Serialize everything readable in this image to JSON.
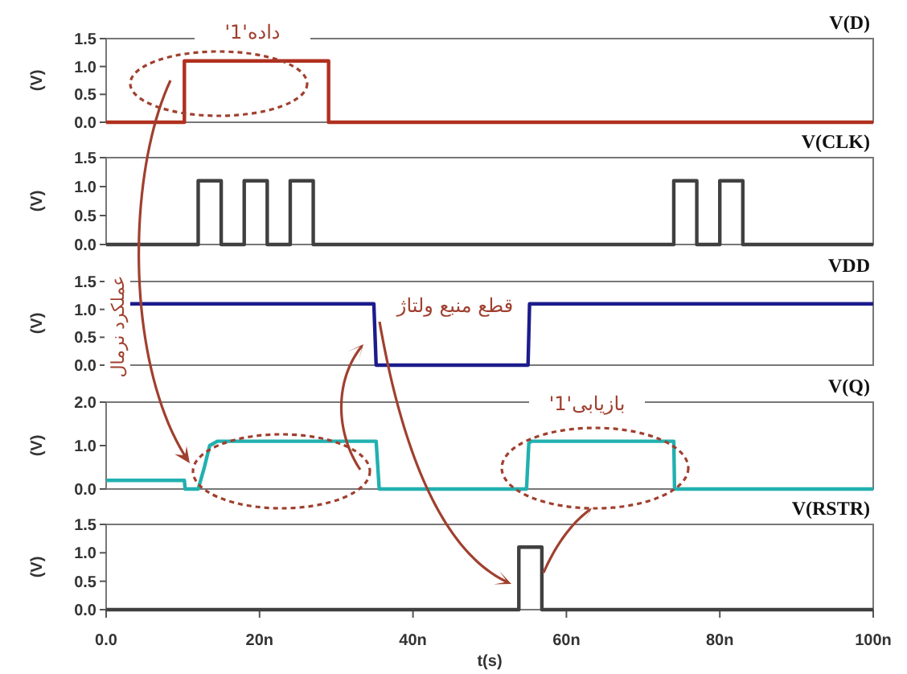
{
  "chart_data": [
    {
      "type": "line",
      "title": "V(D)",
      "ylabel": "(V)",
      "xlim": [
        0,
        100
      ],
      "ylim": [
        0,
        1.5
      ],
      "tick_labels": "y",
      "yticks": [
        {
          "value": 0,
          "label": "0.0"
        },
        {
          "value": 0.5,
          "label": "0.5"
        },
        {
          "value": 1,
          "label": "1.0"
        },
        {
          "value": 1.5,
          "label": "1.5"
        }
      ],
      "x": [
        0,
        10.2,
        10.2,
        29,
        29,
        100
      ],
      "series": [
        {
          "color": "#b0301e",
          "values": [
            0,
            0,
            1.1,
            1.1,
            0,
            0
          ]
        }
      ],
      "annotations": [
        "داده'1'"
      ]
    },
    {
      "type": "line",
      "title": "V(CLK)",
      "ylabel": "(V)",
      "xlim": [
        0,
        100
      ],
      "ylim": [
        0,
        1.5
      ],
      "tick_labels": "y",
      "yticks": [
        {
          "value": 0,
          "label": "0.0"
        },
        {
          "value": 0.5,
          "label": "0.5"
        },
        {
          "value": 1,
          "label": "1.0"
        },
        {
          "value": 1.5,
          "label": "1.5"
        }
      ],
      "x": [
        0,
        12,
        12,
        15,
        15,
        18,
        18,
        21,
        21,
        24,
        24,
        27,
        27,
        74,
        74,
        77,
        77,
        80,
        80,
        83,
        83,
        100
      ],
      "series": [
        {
          "color": "#404040",
          "values": [
            0,
            0,
            1.1,
            1.1,
            0,
            0,
            1.1,
            1.1,
            0,
            0,
            1.1,
            1.1,
            0,
            0,
            1.1,
            1.1,
            0,
            0,
            1.1,
            1.1,
            0,
            0
          ]
        }
      ]
    },
    {
      "type": "line",
      "title": "VDD",
      "ylabel": "(V)",
      "xlim": [
        0,
        100
      ],
      "ylim": [
        0,
        1.5
      ],
      "tick_labels": "y",
      "yticks": [
        {
          "value": 0,
          "label": "0.0"
        },
        {
          "value": 0.5,
          "label": "0.5"
        },
        {
          "value": 1,
          "label": "1.0"
        },
        {
          "value": 1.5,
          "label": "1.5"
        }
      ],
      "x": [
        3,
        34.9,
        35.2,
        55,
        55.2,
        100
      ],
      "series": [
        {
          "color": "#1c1c8c",
          "values": [
            1.1,
            1.1,
            0,
            0,
            1.1,
            1.1
          ]
        }
      ],
      "annotations": [
        "عملکرد نرمال",
        "قطع منبع ولتاژ"
      ]
    },
    {
      "type": "line",
      "title": "V(Q)",
      "ylabel": "(V)",
      "xlim": [
        0,
        100
      ],
      "ylim": [
        0,
        2
      ],
      "tick_labels": "y",
      "yticks": [
        {
          "value": 0,
          "label": "0.0"
        },
        {
          "value": 1,
          "label": "1.0"
        },
        {
          "value": 2,
          "label": "2.0"
        }
      ],
      "x": [
        0,
        10.2,
        10.3,
        12,
        12.8,
        13.5,
        14.5,
        35.2,
        35.6,
        54.8,
        55.1,
        55.4,
        74,
        74.1,
        100
      ],
      "series": [
        {
          "color": "#22b0b0",
          "values": [
            0.2,
            0.2,
            0,
            0,
            0.5,
            1.0,
            1.1,
            1.1,
            0,
            0,
            1.05,
            1.1,
            1.1,
            0,
            0
          ]
        }
      ],
      "annotations": [
        "بازیابی'1'"
      ]
    },
    {
      "type": "line",
      "title": "V(RSTR)",
      "ylabel": "(V)",
      "xlabel": "t(s)",
      "xlim": [
        0,
        100
      ],
      "ylim": [
        0,
        1.5
      ],
      "xticks": [
        {
          "value": 0,
          "label": "0.0"
        },
        {
          "value": 20,
          "label": "20n"
        },
        {
          "value": 40,
          "label": "40n"
        },
        {
          "value": 60,
          "label": "60n"
        },
        {
          "value": 80,
          "label": "80n"
        },
        {
          "value": 100,
          "label": "100n"
        }
      ],
      "yticks": [
        {
          "value": 0,
          "label": "0.0"
        },
        {
          "value": 0.5,
          "label": "0.5"
        },
        {
          "value": 1,
          "label": "1.0"
        },
        {
          "value": 1.5,
          "label": "1.5"
        }
      ],
      "x": [
        0,
        53.8,
        53.8,
        56.8,
        56.8,
        100
      ],
      "series": [
        {
          "color": "#404040",
          "values": [
            0,
            0,
            1.1,
            1.1,
            0,
            0
          ]
        }
      ]
    }
  ]
}
